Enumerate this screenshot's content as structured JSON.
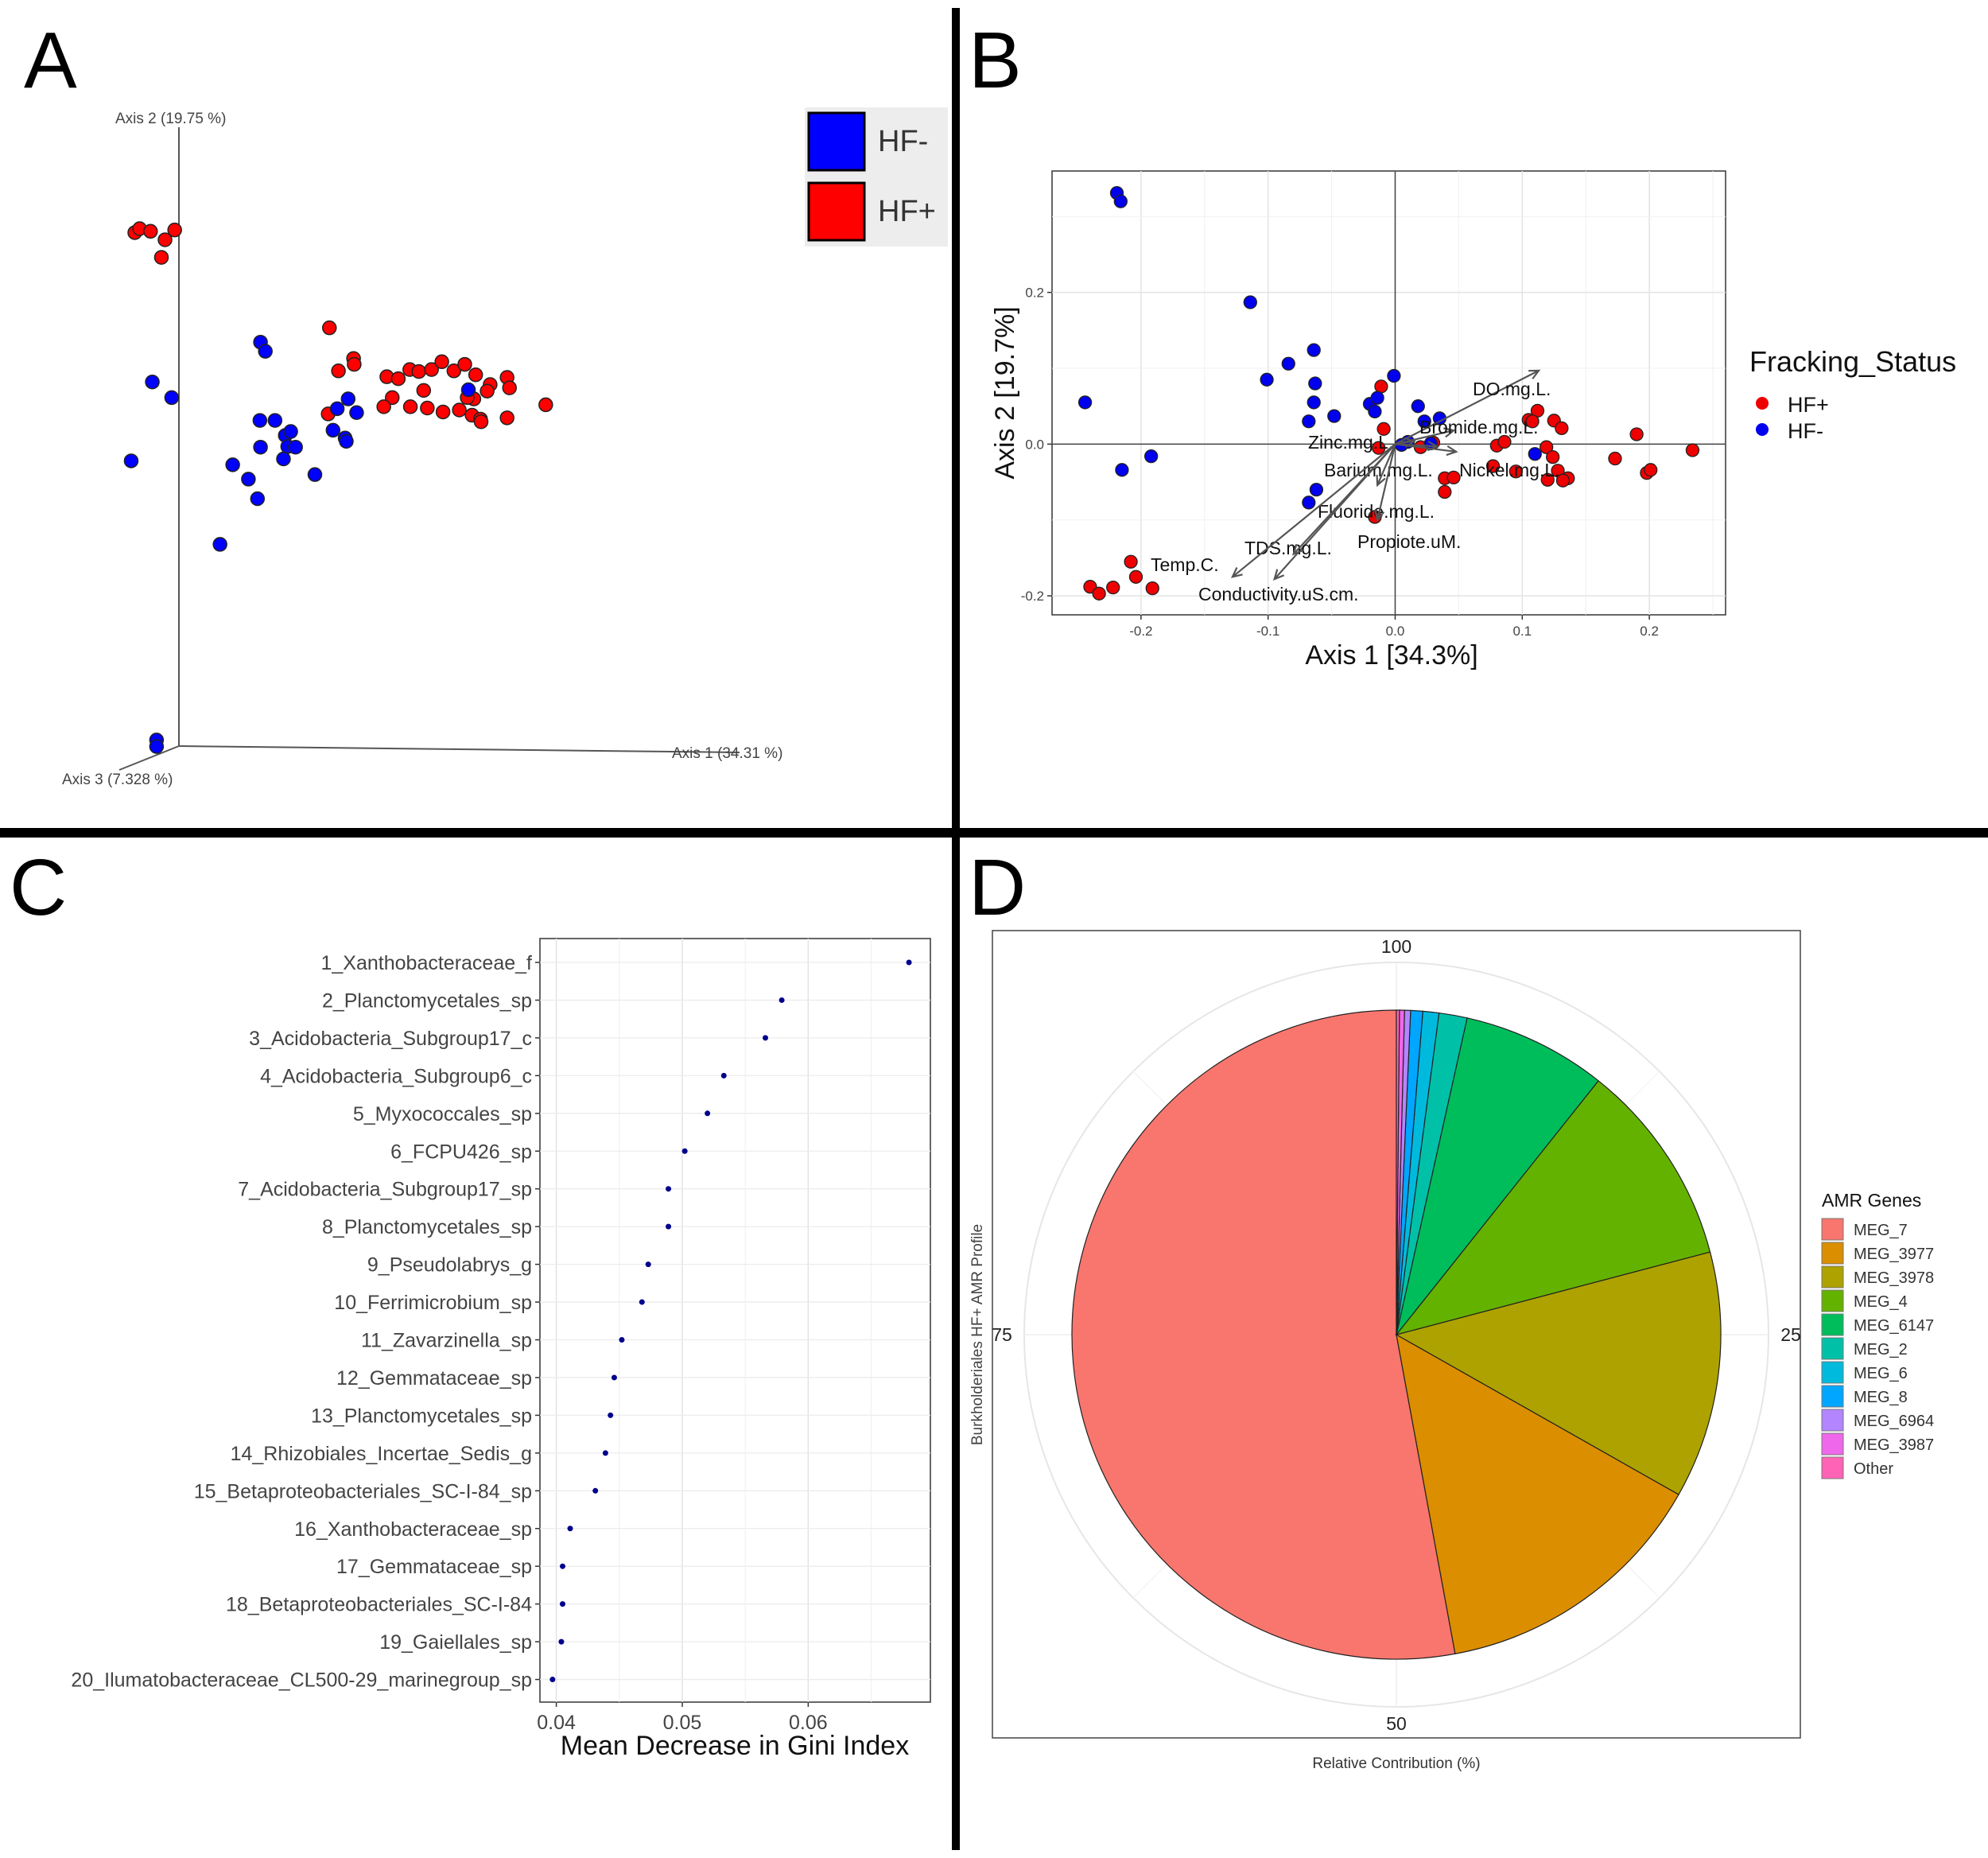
{
  "colors": {
    "hf_minus": "#0000ff",
    "hf_plus": "#ff0000",
    "hf_minus_b": "#0000ee",
    "hf_plus_b": "#ee0000",
    "divider": "#000000",
    "arrow": "#555555",
    "gini_point": "#00008b"
  },
  "panels": {
    "a": {
      "letter": "A"
    },
    "b": {
      "letter": "B"
    },
    "c": {
      "letter": "C"
    },
    "d": {
      "letter": "D"
    }
  },
  "chart_data": [
    {
      "panel": "A",
      "type": "scatter",
      "axes": {
        "axis1": "Axis 1 (34.31 %)",
        "axis2": "Axis 2 (19.75 %)",
        "axis3": "Axis 3 (7.328 %)"
      },
      "legend": {
        "placement": "top-right",
        "entries": [
          {
            "label": "HF-",
            "color_key": "hf_minus"
          },
          {
            "label": "HF+",
            "color_key": "hf_plus"
          }
        ]
      },
      "series": [
        {
          "name": "HF+",
          "points": [
            [
              0.052,
              0.808
            ],
            [
              0.06,
              0.814
            ],
            [
              0.078,
              0.81
            ],
            [
              0.102,
              0.797
            ],
            [
              0.118,
              0.812
            ],
            [
              0.096,
              0.77
            ],
            [
              0.374,
              0.662
            ],
            [
              0.414,
              0.615
            ],
            [
              0.415,
              0.606
            ],
            [
              0.389,
              0.596
            ],
            [
              0.372,
              0.53
            ],
            [
              0.469,
              0.587
            ],
            [
              0.488,
              0.584
            ],
            [
              0.507,
              0.598
            ],
            [
              0.522,
              0.595
            ],
            [
              0.543,
              0.598
            ],
            [
              0.56,
              0.61
            ],
            [
              0.58,
              0.596
            ],
            [
              0.598,
              0.606
            ],
            [
              0.616,
              0.59
            ],
            [
              0.64,
              0.575
            ],
            [
              0.668,
              0.586
            ],
            [
              0.672,
              0.57
            ],
            [
              0.635,
              0.565
            ],
            [
              0.613,
              0.553
            ],
            [
              0.602,
              0.555
            ],
            [
              0.53,
              0.566
            ],
            [
              0.478,
              0.555
            ],
            [
              0.464,
              0.541
            ],
            [
              0.508,
              0.541
            ],
            [
              0.536,
              0.539
            ],
            [
              0.562,
              0.533
            ],
            [
              0.589,
              0.536
            ],
            [
              0.61,
              0.528
            ],
            [
              0.624,
              0.522
            ],
            [
              0.625,
              0.518
            ],
            [
              0.732,
              0.544
            ],
            [
              0.668,
              0.524
            ]
          ]
        },
        {
          "name": "HF-",
          "points": [
            [
              0.26,
              0.64
            ],
            [
              0.268,
              0.626
            ],
            [
              0.081,
              0.579
            ],
            [
              0.113,
              0.555
            ],
            [
              0.046,
              0.458
            ],
            [
              0.405,
              0.553
            ],
            [
              0.387,
              0.538
            ],
            [
              0.419,
              0.532
            ],
            [
              0.604,
              0.567
            ],
            [
              0.38,
              0.505
            ],
            [
              0.4,
              0.493
            ],
            [
              0.402,
              0.488
            ],
            [
              0.259,
              0.52
            ],
            [
              0.284,
              0.52
            ],
            [
              0.301,
              0.497
            ],
            [
              0.31,
              0.503
            ],
            [
              0.305,
              0.48
            ],
            [
              0.26,
              0.479
            ],
            [
              0.298,
              0.461
            ],
            [
              0.35,
              0.437
            ],
            [
              0.214,
              0.452
            ],
            [
              0.24,
              0.43
            ],
            [
              0.255,
              0.4
            ],
            [
              0.193,
              0.33
            ],
            [
              0.088,
              0.03
            ],
            [
              0.088,
              0.02
            ],
            [
              0.318,
              0.479
            ]
          ]
        }
      ]
    },
    {
      "panel": "B",
      "type": "scatter",
      "xlabel": "Axis 1 [34.3%]",
      "ylabel": "Axis 2 [19.7%]",
      "xlim": [
        -0.27,
        0.26
      ],
      "ylim": [
        -0.225,
        0.36
      ],
      "x_ticks": [
        "-0.2",
        "-0.1",
        "0.0",
        "0.1",
        "0.2"
      ],
      "y_ticks": [
        "-0.2",
        "0.0",
        "0.2"
      ],
      "grid": true,
      "legend": {
        "placement": "right",
        "title": "Fracking_Status",
        "entries": [
          {
            "label": "HF+",
            "color_key": "hf_plus_b"
          },
          {
            "label": "HF-",
            "color_key": "hf_minus_b"
          }
        ]
      },
      "series": [
        {
          "name": "HF+",
          "points": [
            [
              -0.24,
              -0.188
            ],
            [
              -0.233,
              -0.197
            ],
            [
              -0.222,
              -0.189
            ],
            [
              -0.208,
              -0.155
            ],
            [
              -0.204,
              -0.175
            ],
            [
              -0.191,
              -0.19
            ],
            [
              -0.011,
              0.076
            ],
            [
              -0.009,
              0.02
            ],
            [
              -0.013,
              -0.005
            ],
            [
              -0.016,
              -0.096
            ],
            [
              0.02,
              -0.004
            ],
            [
              0.03,
              0.002
            ],
            [
              0.039,
              -0.045
            ],
            [
              0.046,
              -0.044
            ],
            [
              0.039,
              -0.063
            ],
            [
              0.08,
              -0.002
            ],
            [
              0.086,
              0.003
            ],
            [
              0.077,
              -0.029
            ],
            [
              0.095,
              -0.036
            ],
            [
              0.105,
              0.032
            ],
            [
              0.112,
              0.044
            ],
            [
              0.125,
              0.031
            ],
            [
              0.131,
              0.021
            ],
            [
              0.119,
              -0.004
            ],
            [
              0.124,
              -0.017
            ],
            [
              0.128,
              -0.035
            ],
            [
              0.12,
              -0.047
            ],
            [
              0.136,
              -0.045
            ],
            [
              0.132,
              -0.048
            ],
            [
              0.173,
              -0.019
            ],
            [
              0.19,
              0.013
            ],
            [
              0.198,
              -0.038
            ],
            [
              0.201,
              -0.034
            ],
            [
              0.234,
              -0.008
            ],
            [
              0.108,
              0.03
            ]
          ]
        },
        {
          "name": "HF-",
          "points": [
            [
              -0.219,
              0.331
            ],
            [
              -0.216,
              0.32
            ],
            [
              -0.244,
              0.055
            ],
            [
              -0.215,
              -0.034
            ],
            [
              -0.192,
              -0.016
            ],
            [
              -0.114,
              0.187
            ],
            [
              -0.101,
              0.085
            ],
            [
              -0.084,
              0.106
            ],
            [
              -0.064,
              0.124
            ],
            [
              -0.063,
              0.08
            ],
            [
              -0.064,
              0.055
            ],
            [
              -0.068,
              0.03
            ],
            [
              -0.048,
              0.037
            ],
            [
              -0.062,
              -0.06
            ],
            [
              -0.068,
              -0.077
            ],
            [
              -0.02,
              0.053
            ],
            [
              -0.014,
              0.061
            ],
            [
              -0.001,
              0.09
            ],
            [
              0.018,
              0.05
            ],
            [
              0.023,
              0.03
            ],
            [
              0.035,
              0.034
            ],
            [
              0.01,
              0.003
            ],
            [
              0.005,
              -0.001
            ],
            [
              0.028,
              0.001
            ],
            [
              0.11,
              -0.013
            ],
            [
              -0.016,
              0.043
            ]
          ]
        }
      ],
      "vectors": [
        {
          "label": "DO.mg.L.",
          "x": 0.113,
          "y": 0.097
        },
        {
          "label": "Bromide.mg.L.",
          "x": 0.046,
          "y": 0.018
        },
        {
          "label": "Zinc.mg.L.",
          "x": 0.015,
          "y": 0.004
        },
        {
          "label": "Barium.mg.L.",
          "x": 0.033,
          "y": -0.003
        },
        {
          "label": "Nickel.mg.L.",
          "x": 0.048,
          "y": -0.01
        },
        {
          "label": "Fluoride.mg.L.",
          "x": -0.014,
          "y": -0.054
        },
        {
          "label": "Propiote.uM.",
          "x": -0.014,
          "y": -0.1
        },
        {
          "label": "TDS.mg.L.",
          "x": -0.095,
          "y": -0.178
        },
        {
          "label": "Temp.C.",
          "x": -0.128,
          "y": -0.175
        },
        {
          "label": "Conductivity.uS.cm.",
          "x": -0.08,
          "y": -0.145
        }
      ]
    },
    {
      "panel": "C",
      "type": "scatter",
      "xlabel": "Mean Decrease in Gini Index",
      "xlim": [
        0.0387,
        0.0697
      ],
      "x_ticks": [
        0.04,
        0.05,
        0.06
      ],
      "x_tick_labels": [
        "0.04",
        "0.05",
        "0.06"
      ],
      "grid": true,
      "categories": [
        "1_Xanthobacteraceae_f",
        "2_Planctomycetales_sp",
        "3_Acidobacteria_Subgroup17_c",
        "4_Acidobacteria_Subgroup6_c",
        "5_Myxococcales_sp",
        "6_FCPU426_sp",
        "7_Acidobacteria_Subgroup17_sp",
        "8_Planctomycetales_sp",
        "9_Pseudolabrys_g",
        "10_Ferrimicrobium_sp",
        "11_Zavarzinella_sp",
        "12_Gemmataceae_sp",
        "13_Planctomycetales_sp",
        "14_Rhizobiales_Incertae_Sedis_g",
        "15_Betaproteobacteriales_SC-I-84_sp",
        "16_Xanthobacteraceae_sp",
        "17_Gemmataceae_sp",
        "18_Betaproteobacteriales_SC-I-84",
        "19_Gaiellales_sp",
        "20_Ilumatobacteraceae_CL500-29_marinegroup_sp"
      ],
      "values": [
        0.068,
        0.0579,
        0.0566,
        0.0533,
        0.052,
        0.0502,
        0.0489,
        0.0489,
        0.0473,
        0.0468,
        0.0452,
        0.0446,
        0.0443,
        0.0439,
        0.0431,
        0.0411,
        0.0405,
        0.0405,
        0.0404,
        0.0397
      ]
    },
    {
      "panel": "D",
      "type": "pie",
      "xlabel": "Relative Contribution (%)",
      "ylabel": "Burkholderiales HF+ AMR Profile",
      "tick_labels": [
        "100",
        "25",
        "50",
        "75"
      ],
      "grid": true,
      "legend": {
        "placement": "right",
        "title": "AMR Genes"
      },
      "slices": [
        {
          "label": "MEG_7",
          "value": 52.9,
          "color": "#F8766D"
        },
        {
          "label": "MEG_3977",
          "value": 13.9,
          "color": "#DB8E00"
        },
        {
          "label": "MEG_3978",
          "value": 12.3,
          "color": "#AEA200"
        },
        {
          "label": "MEG_4",
          "value": 10.2,
          "color": "#64B200"
        },
        {
          "label": "MEG_6147",
          "value": 7.2,
          "color": "#00BD5C"
        },
        {
          "label": "MEG_2",
          "value": 1.4,
          "color": "#00C1A7"
        },
        {
          "label": "MEG_6",
          "value": 0.8,
          "color": "#00BADE"
        },
        {
          "label": "MEG_8",
          "value": 0.6,
          "color": "#00A6FF"
        },
        {
          "label": "MEG_6964",
          "value": 0.3,
          "color": "#B385FF"
        },
        {
          "label": "MEG_3987",
          "value": 0.25,
          "color": "#EF67EB"
        },
        {
          "label": "Other",
          "value": 0.15,
          "color": "#FF63B6"
        }
      ]
    }
  ]
}
